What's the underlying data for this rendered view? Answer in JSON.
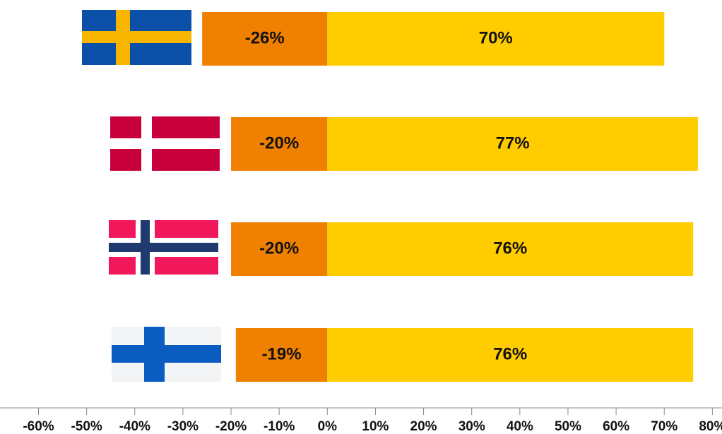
{
  "chart_data": {
    "type": "diverging_bar",
    "categories": [
      null,
      null,
      null,
      null
    ],
    "series": [
      {
        "color": "#f08000",
        "values": [
          -26,
          -20,
          -20,
          -19
        ],
        "value_labels": [
          "-26%",
          "-20%",
          "-20%",
          "-19%"
        ]
      },
      {
        "color": "#ffcc00",
        "values": [
          70,
          77,
          76,
          76
        ],
        "value_labels": [
          "70%",
          "77%",
          "76%",
          "76%"
        ]
      }
    ],
    "xlim": [
      -68,
      82
    ],
    "xticks": [
      {
        "value": -60,
        "label": "-60%"
      },
      {
        "value": -50,
        "label": "-50%"
      },
      {
        "value": -40,
        "label": "-40%"
      },
      {
        "value": -30,
        "label": "-30%"
      },
      {
        "value": -20,
        "label": "-20%"
      },
      {
        "value": -10,
        "label": "-10%"
      },
      {
        "value": 0,
        "label": "0%"
      },
      {
        "value": 10,
        "label": "10%"
      },
      {
        "value": 20,
        "label": "20%"
      },
      {
        "value": 30,
        "label": "30%"
      },
      {
        "value": 40,
        "label": "40%"
      },
      {
        "value": 50,
        "label": "50%"
      },
      {
        "value": 60,
        "label": "60%"
      },
      {
        "value": 70,
        "label": "70%"
      },
      {
        "value": 80,
        "label": "80%"
      }
    ]
  }
}
